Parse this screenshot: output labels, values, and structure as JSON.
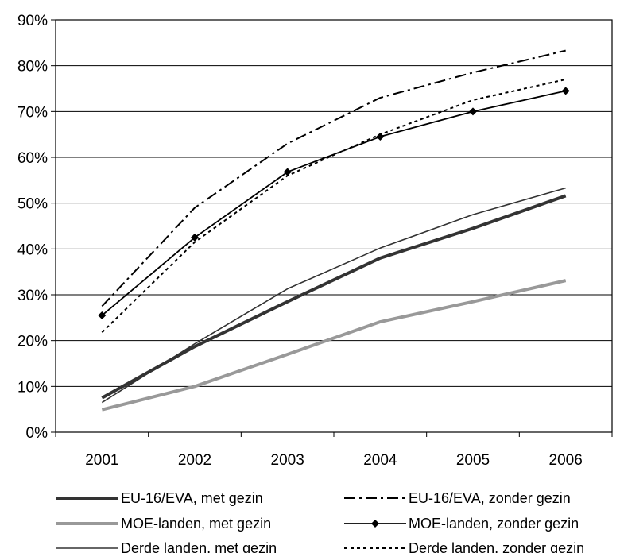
{
  "chart_data": {
    "type": "line",
    "title": "",
    "xlabel": "",
    "ylabel": "",
    "categories": [
      "2001",
      "2002",
      "2003",
      "2004",
      "2005",
      "2006"
    ],
    "ylim": [
      0,
      90
    ],
    "yticks": [
      0,
      10,
      20,
      30,
      40,
      50,
      60,
      70,
      80,
      90
    ],
    "ytick_labels": [
      "0%",
      "10%",
      "20%",
      "30%",
      "40%",
      "50%",
      "60%",
      "70%",
      "80%",
      "90%"
    ],
    "grid": "horizontal",
    "legend_position": "bottom",
    "series": [
      {
        "name": "EU-16/EVA, met gezin",
        "values": [
          7.5,
          18.7,
          28.5,
          38.0,
          44.5,
          51.6
        ],
        "color": "#333333",
        "style": "thick-solid"
      },
      {
        "name": "EU-16/EVA, zonder gezin",
        "values": [
          27.5,
          49.0,
          63.0,
          73.0,
          78.5,
          83.3
        ],
        "color": "#000000",
        "style": "dash-dot"
      },
      {
        "name": "MOE-landen, met gezin",
        "values": [
          4.9,
          10.0,
          17.0,
          24.1,
          28.5,
          33.1
        ],
        "color": "#999999",
        "style": "thick-solid"
      },
      {
        "name": "MOE-landen, zonder gezin",
        "values": [
          25.5,
          42.5,
          56.8,
          64.5,
          70.0,
          74.5
        ],
        "color": "#000000",
        "style": "solid-diamond"
      },
      {
        "name": "Derde landen, met gezin",
        "values": [
          6.5,
          19.3,
          31.3,
          40.2,
          47.5,
          53.3
        ],
        "color": "#333333",
        "style": "thin-solid"
      },
      {
        "name": "Derde landen, zonder gezin",
        "values": [
          21.8,
          41.5,
          56.0,
          65.0,
          72.5,
          77.0
        ],
        "color": "#000000",
        "style": "dotted"
      }
    ]
  }
}
